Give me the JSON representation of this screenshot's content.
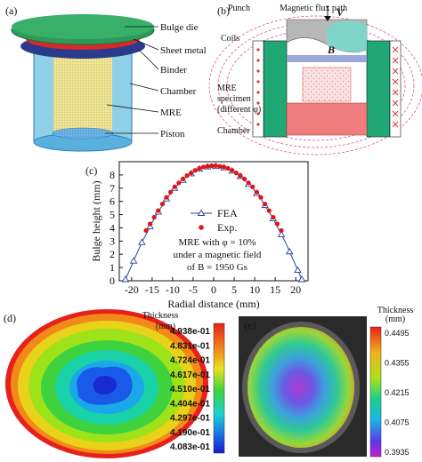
{
  "panel_a": {
    "label": "(a)",
    "parts": [
      "Bulge die",
      "Sheet metal",
      "Binder",
      "Chamber",
      "MRE",
      "Piston"
    ]
  },
  "panel_b": {
    "label": "(b)",
    "punch": "Punch",
    "flux": "Magnetic flux path",
    "velocity": "V",
    "field": "B",
    "coils": "Coils",
    "specimen_line1": "MRE",
    "specimen_line2": "specimen",
    "specimen_line3": "(different φ)",
    "chamber": "Chamber"
  },
  "panel_c": {
    "label": "(c)",
    "annotation_line1": "MRE with φ = 10%",
    "annotation_line2": "under a magnetic field",
    "annotation_line3": "of B = 1950 Gs"
  },
  "panel_d": {
    "label": "(d)",
    "legend_title": "Thickness",
    "legend_unit": "(mm)",
    "ticks": [
      "4.938e-01",
      "4.831e-01",
      "4.724e-01",
      "4.617e-01",
      "4.510e-01",
      "4.404e-01",
      "4.297e-01",
      "4.190e-01",
      "4.083e-01"
    ]
  },
  "panel_e": {
    "label": "(e)",
    "legend_title": "Thickness",
    "legend_unit": "(mm)",
    "ticks": [
      "0.4495",
      "0.4355",
      "0.4215",
      "0.4075",
      "0.3935"
    ]
  },
  "colors": {
    "fea": "#2a3fa0",
    "exp": "#e01515",
    "green": "#1fa876",
    "salmon": "#f07d7d",
    "coil": "#d63a3a",
    "flux": "#e03a8a"
  },
  "chart_data": {
    "type": "line",
    "xlabel": "Radial distance (mm)",
    "ylabel": "Bulge height (mm)",
    "xlim": [
      -23,
      23
    ],
    "ylim": [
      0,
      9
    ],
    "xticks": [
      -20,
      -15,
      -10,
      -5,
      0,
      5,
      10,
      15,
      20
    ],
    "yticks": [
      0,
      1,
      2,
      3,
      4,
      5,
      6,
      7,
      8
    ],
    "legend_position": "center",
    "series": [
      {
        "name": "FEA",
        "style": "line-triangle",
        "x": [
          -21.5,
          -20.5,
          -19.5,
          -18.5,
          -17.5,
          -16.5,
          -15.5,
          -14.5,
          -13.5,
          -12.5,
          -11.5,
          -10.5,
          -9.5,
          -8.5,
          -7.5,
          -6.5,
          -5.5,
          -4.5,
          -3.5,
          -2.5,
          -1.5,
          -0.5,
          0.5,
          1.5,
          2.5,
          3.5,
          4.5,
          5.5,
          6.5,
          7.5,
          8.5,
          9.5,
          10.5,
          11.5,
          12.5,
          13.5,
          14.5,
          15.5,
          16.5,
          17.5,
          18.5,
          19.5,
          20.5,
          21.5
        ],
        "y": [
          0.1,
          0.8,
          1.5,
          2.2,
          2.9,
          3.5,
          4.1,
          4.7,
          5.2,
          5.7,
          6.2,
          6.6,
          7.0,
          7.3,
          7.6,
          7.9,
          8.1,
          8.3,
          8.45,
          8.55,
          8.62,
          8.65,
          8.65,
          8.62,
          8.55,
          8.45,
          8.3,
          8.1,
          7.9,
          7.6,
          7.3,
          7.0,
          6.6,
          6.2,
          5.7,
          5.2,
          4.7,
          4.1,
          3.5,
          2.9,
          2.2,
          1.5,
          0.8,
          0.1
        ]
      },
      {
        "name": "Exp.",
        "style": "dot",
        "x": [
          -16.5,
          -15.5,
          -14.5,
          -13.5,
          -12.5,
          -11.5,
          -10.5,
          -9.5,
          -8.5,
          -7.5,
          -6.5,
          -5.5,
          -4.5,
          -3.5,
          -2.5,
          -1.5,
          -0.5,
          0.5,
          1.5,
          2.5,
          3.5,
          4.5,
          5.5,
          6.5,
          7.5,
          8.5,
          9.5,
          10.5,
          11.5,
          12.5,
          13.5,
          14.5,
          15.5,
          16.5
        ],
        "y": [
          3.8,
          4.3,
          4.8,
          5.3,
          5.8,
          6.3,
          6.7,
          7.1,
          7.4,
          7.7,
          7.95,
          8.15,
          8.35,
          8.5,
          8.6,
          8.65,
          8.7,
          8.7,
          8.65,
          8.6,
          8.5,
          8.35,
          8.15,
          7.95,
          7.7,
          7.4,
          7.1,
          6.7,
          6.3,
          5.8,
          5.3,
          4.8,
          4.3,
          3.8
        ]
      }
    ]
  }
}
